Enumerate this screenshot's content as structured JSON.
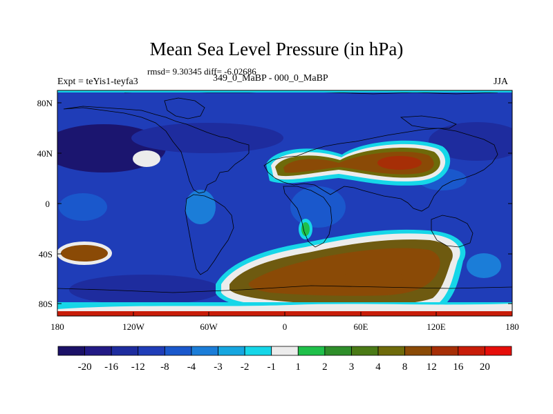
{
  "title": "Mean Sea Level Pressure (in hPa)",
  "stats": "rmsd= 9.30345 diff= -6.02686",
  "experiment": "Expt = teYis1-teyfa3",
  "comparison": "349_0_MaBP - 000_0_MaBP",
  "season": "JJA",
  "lat_ticks": [
    "80N",
    "40N",
    "0",
    "40S",
    "80S"
  ],
  "lon_ticks": [
    "180",
    "120W",
    "60W",
    "0",
    "60E",
    "120E",
    "180"
  ],
  "colorbar": {
    "labels": [
      "-20",
      "-16",
      "-12",
      "-8",
      "-4",
      "-3",
      "-2",
      "-1",
      "1",
      "2",
      "3",
      "4",
      "8",
      "12",
      "16",
      "20"
    ],
    "colors": [
      "#1b1167",
      "#221a85",
      "#1e2c9e",
      "#1f3db8",
      "#1a58cc",
      "#1b7dd8",
      "#16a6e0",
      "#16d6e8",
      "#ececec",
      "#1fc04a",
      "#2e8e2a",
      "#4a7a16",
      "#6e6a0a",
      "#8a4a06",
      "#a62e06",
      "#c81c08",
      "#e60e0a"
    ]
  },
  "colors": {
    "ocean_base": "#1f3db8",
    "land_high": "#6e5a10",
    "deep_low": "#1b1167"
  }
}
